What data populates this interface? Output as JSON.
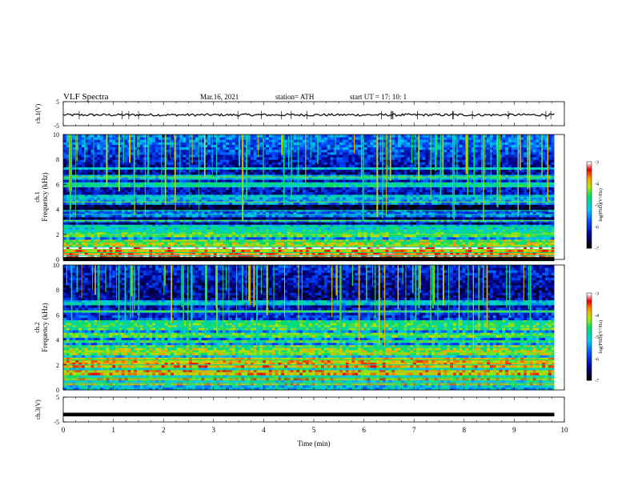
{
  "header": {
    "title": "VLF  Spectra",
    "date": "Mar.16, 2021",
    "station": "station= ATH",
    "start": "start  UT  =   17: 10: 1"
  },
  "chart_data": [
    {
      "type": "line",
      "id": "ch1_timeseries",
      "ylabel": "ch.1(V)",
      "ylim": [
        -5,
        5
      ],
      "y_ticks": [
        "5",
        "-5"
      ],
      "xlim": [
        0,
        10
      ],
      "series": [
        {
          "color": "#000000",
          "mean": -0.5,
          "spread": 1.0,
          "end_minute": 9.8
        }
      ]
    },
    {
      "type": "heatmap",
      "id": "ch1_spectrogram",
      "ylabel": "ch.1\nFrequency (kHz)",
      "ylim": [
        0,
        10
      ],
      "y_ticks": [
        "0",
        "2",
        "4",
        "6",
        "8",
        "10"
      ],
      "xlim": [
        0,
        10
      ],
      "data_end_minute": 9.8,
      "colorbar": {
        "label": "log(PSD)(V²/Hz)",
        "range": [
          -7,
          -3
        ],
        "ticks": [
          "-3",
          "-4",
          "-5",
          "-6",
          "-7"
        ]
      },
      "bands_khz": [
        0.3,
        0.55,
        0.8,
        1.0,
        1.4,
        2.0,
        2.25,
        2.6,
        3.1,
        3.6,
        3.9,
        4.6,
        5.0,
        6.0,
        6.6,
        7.3
      ],
      "level_profile": [
        [
          0,
          -4.2
        ],
        [
          1,
          -5.2
        ],
        [
          2,
          -5.6
        ],
        [
          3,
          -6.5
        ],
        [
          4,
          -6.9
        ],
        [
          5,
          -6.3
        ],
        [
          6,
          -6.0
        ],
        [
          7,
          -6.4
        ],
        [
          8,
          -6.1
        ],
        [
          9,
          -5.7
        ],
        [
          10,
          -5.6
        ]
      ]
    },
    {
      "type": "heatmap",
      "id": "ch2_spectrogram",
      "ylabel": "ch.2\nFrequency (kHz)",
      "ylim": [
        0,
        10
      ],
      "y_ticks": [
        "0",
        "2",
        "4",
        "6",
        "8",
        "10"
      ],
      "xlim": [
        0,
        10
      ],
      "data_end_minute": 9.8,
      "colorbar": {
        "label": "log(PSD)(V²/Hz)",
        "range": [
          -7,
          -3
        ],
        "ticks": [
          "-3",
          "-4",
          "-5",
          "-6",
          "-7"
        ]
      },
      "bands_khz": [
        0.5,
        0.9,
        1.4,
        2.0,
        2.4,
        3.0,
        3.4,
        3.9,
        4.4,
        5.0,
        5.4,
        6.3,
        7.0
      ],
      "level_profile": [
        [
          0,
          -5.3
        ],
        [
          1,
          -4.9
        ],
        [
          2,
          -4.9
        ],
        [
          3,
          -5.3
        ],
        [
          4,
          -5.6
        ],
        [
          5,
          -5.6
        ],
        [
          6,
          -6.0
        ],
        [
          7,
          -6.3
        ],
        [
          8,
          -6.4
        ],
        [
          9,
          -6.2
        ],
        [
          10,
          -6.0
        ]
      ]
    },
    {
      "type": "line",
      "id": "ch3_timeseries",
      "ylabel": "ch.3(V)",
      "ylim": [
        -5,
        5
      ],
      "y_ticks": [
        "5",
        "-5"
      ],
      "xlim": [
        0,
        10
      ],
      "xlabel": "Time  (min)",
      "x_ticks": [
        "0",
        "1",
        "2",
        "3",
        "4",
        "5",
        "6",
        "7",
        "8",
        "9",
        "10"
      ],
      "series": [
        {
          "color": "#000000",
          "mean": -2.0,
          "spread": 0.0,
          "end_minute": 9.8
        }
      ]
    }
  ]
}
